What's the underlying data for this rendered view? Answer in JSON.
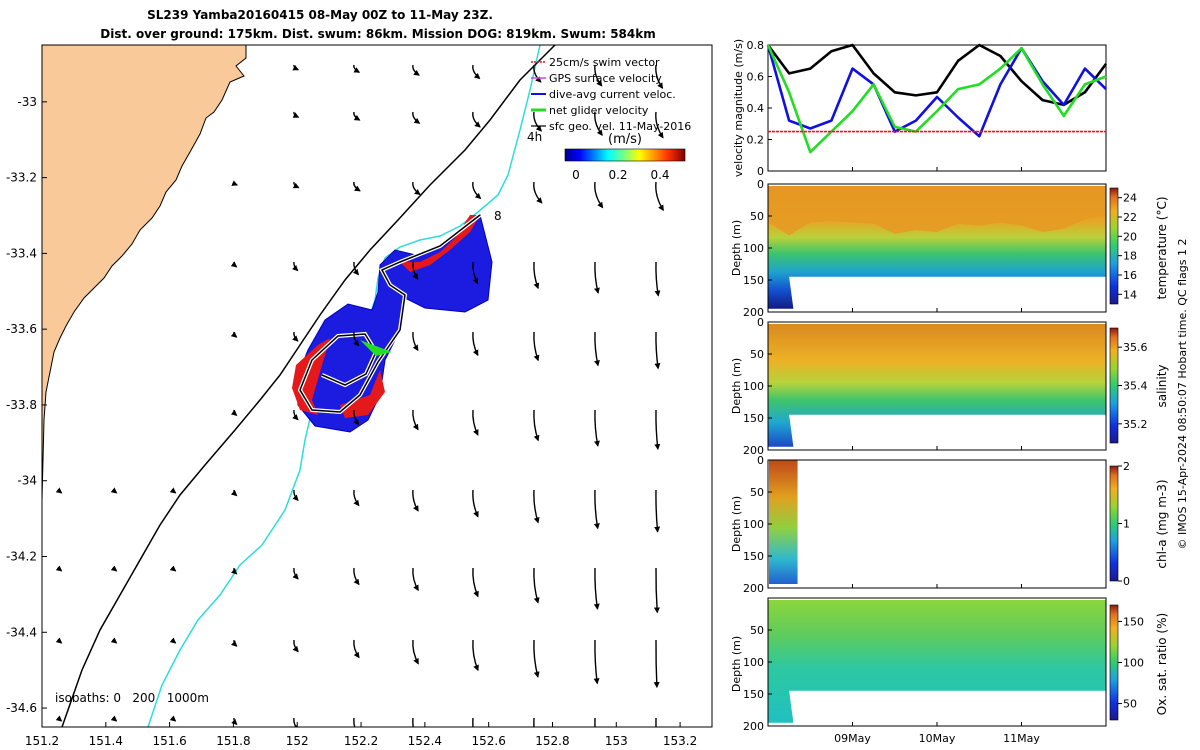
{
  "header": {
    "title_line1": "SL239 Yamba20160415 08-May 00Z to 11-May 23Z.",
    "title_line2": "Dist. over ground: 175km. Dist. swum: 86km. Mission DOG: 819km. Swum: 584km"
  },
  "credit": "© IMOS 15-Apr-2024 08:50:07 Hobart time. QC flags 1  2",
  "colors": {
    "land": "#F9C99A",
    "swim_vector": "#E5191C",
    "gps_velocity": "#E040E0",
    "dive_avg": "#1010E0",
    "net_glider": "#22DD22",
    "sfc_geo": "#000000",
    "isobath_200": "#2EDCDC",
    "isobath_1000": "#000000"
  },
  "chart_data": [
    {
      "type": "map",
      "xlim": [
        151.2,
        153.3
      ],
      "ylim": [
        -34.65,
        -32.85
      ],
      "x_ticks": [
        "151.2",
        "151.4",
        "151.6",
        "151.8",
        "152",
        "152.2",
        "152.4",
        "152.6",
        "152.8",
        "153",
        "153.2"
      ],
      "y_ticks": [
        "-33",
        "-33.2",
        "-33.4",
        "-33.6",
        "-33.8",
        "-34",
        "-34.2",
        "-34.4",
        "-34.6"
      ],
      "legend": [
        {
          "label": "25cm/s swim vector",
          "color_key": "swim_vector"
        },
        {
          "label": "GPS surface velocity",
          "color_key": "gps_velocity"
        },
        {
          "label": "dive-avg current veloc.",
          "color_key": "dive_avg"
        },
        {
          "label": "net glider velocity",
          "color_key": "net_glider"
        },
        {
          "label": "sfc geo. vel. 11-May-2016",
          "color_key": "sfc_geo"
        }
      ],
      "legend_placement": "top-right",
      "colorbar": {
        "label": "(m/s)",
        "ticks": [
          "0",
          "0.2",
          "0.4"
        ],
        "range": [
          0,
          0.5
        ]
      },
      "isobaths_label": "isobaths: 0   200   1000m",
      "annotations": {
        "start_hour": "4h",
        "end_day": "8"
      }
    },
    {
      "type": "line",
      "ylabel": "velocity magnitude (m/s)",
      "ylim": [
        0,
        0.8
      ],
      "y_ticks": [
        "0",
        "0.2",
        "0.4",
        "0.6",
        "0.8"
      ],
      "x": [
        8.0,
        8.25,
        8.5,
        8.75,
        9.0,
        9.25,
        9.5,
        9.75,
        10.0,
        10.25,
        10.5,
        10.75,
        11.0,
        11.25,
        11.5,
        11.75,
        12.0
      ],
      "series": [
        {
          "color_key": "sfc_geo",
          "values": [
            0.8,
            0.62,
            0.65,
            0.76,
            0.8,
            0.62,
            0.5,
            0.48,
            0.5,
            0.7,
            0.8,
            0.73,
            0.57,
            0.45,
            0.42,
            0.5,
            0.68
          ]
        },
        {
          "color_key": "dive_avg",
          "values": [
            0.8,
            0.32,
            0.27,
            0.32,
            0.65,
            0.55,
            0.25,
            0.32,
            0.47,
            0.34,
            0.22,
            0.55,
            0.78,
            0.57,
            0.42,
            0.65,
            0.52
          ]
        },
        {
          "color_key": "net_glider",
          "values": [
            0.8,
            0.5,
            0.12,
            0.25,
            0.38,
            0.55,
            0.28,
            0.25,
            0.38,
            0.52,
            0.55,
            0.65,
            0.78,
            0.55,
            0.35,
            0.55,
            0.6
          ]
        },
        {
          "color_key": "swim_vector",
          "values": [
            0.25,
            0.25,
            0.25,
            0.25,
            0.25,
            0.25,
            0.25,
            0.25,
            0.25,
            0.25,
            0.25,
            0.25,
            0.25,
            0.25,
            0.25,
            0.25,
            0.25
          ]
        }
      ]
    },
    {
      "type": "heatmap",
      "ylabel": "Depth (m)",
      "cbar_label": "temperature (°C)",
      "y_ticks": [
        "0",
        "50",
        "100",
        "150",
        "200"
      ],
      "cbar_ticks": [
        "24",
        "22",
        "20",
        "18",
        "16",
        "14"
      ],
      "clim": [
        13,
        25
      ],
      "warm_layer_bottom_m": [
        60,
        80,
        60,
        58,
        60,
        62,
        78,
        72,
        75,
        62,
        65,
        60,
        65,
        75,
        70,
        55,
        50
      ],
      "data_bottom_m": [
        195,
        145,
        145,
        145,
        145,
        145,
        145,
        145,
        145,
        145,
        145,
        145,
        145,
        145,
        145,
        145,
        145
      ]
    },
    {
      "type": "heatmap",
      "ylabel": "Depth (m)",
      "cbar_label": "salinity",
      "y_ticks": [
        "0",
        "50",
        "100",
        "150",
        "200"
      ],
      "cbar_ticks": [
        "35.6",
        "35.4",
        "35.2"
      ],
      "clim": [
        35.1,
        35.7
      ]
    },
    {
      "type": "heatmap",
      "ylabel": "Depth (m)",
      "cbar_label": "chl-a (mg m-3)",
      "y_ticks": [
        "0",
        "50",
        "100",
        "150",
        "200"
      ],
      "cbar_ticks": [
        "2",
        "1",
        "0"
      ],
      "clim": [
        0,
        2
      ],
      "data_day_range": [
        8.0,
        8.35
      ]
    },
    {
      "type": "heatmap",
      "ylabel": "Depth (m)",
      "cbar_label": "Ox. sat. ratio (%)",
      "y_ticks": [
        "50",
        "100",
        "150",
        "200"
      ],
      "cbar_ticks": [
        "150",
        "100",
        "50"
      ],
      "clim": [
        30,
        170
      ],
      "x_ticks": [
        "09May",
        "10May",
        "11May"
      ],
      "x_tick_days": [
        9,
        10,
        11
      ],
      "xlim_days": [
        8.0,
        12.0
      ]
    }
  ]
}
